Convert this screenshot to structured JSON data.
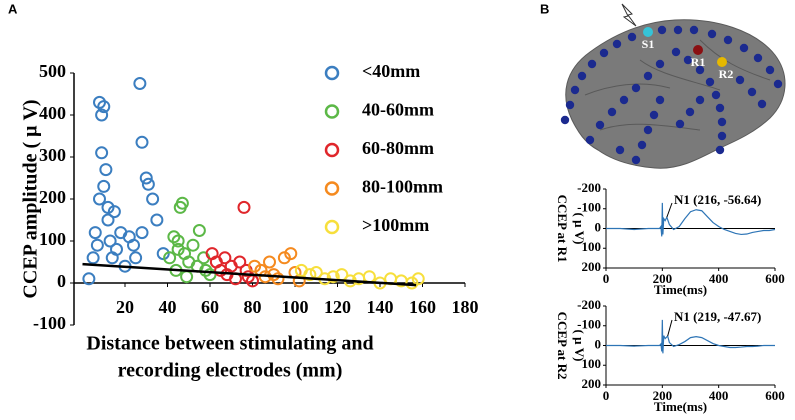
{
  "figure": {
    "panel_labels": [
      "A",
      "B"
    ],
    "brain_labels": [
      "S1",
      "R1",
      "R2"
    ]
  },
  "chart_data": [
    {
      "type": "scatter",
      "ylabel": "CCEP amplitude ( μ V)",
      "xlabel": [
        "Distance between stimulating and",
        "recording electrodes (mm)"
      ],
      "xlim": [
        -4,
        180
      ],
      "xticks": [
        20,
        40,
        60,
        80,
        100,
        120,
        140,
        160,
        180
      ],
      "ylim": [
        -100,
        500
      ],
      "yticks": [
        -100,
        0,
        100,
        200,
        300,
        400,
        500
      ],
      "series": [
        {
          "name": "<40mm",
          "color": "#3b7ec0",
          "x": [
            3,
            5,
            6,
            7,
            8,
            8,
            9,
            9,
            10,
            10,
            11,
            12,
            12,
            13,
            14,
            15,
            16,
            18,
            20,
            22,
            24,
            25,
            27,
            28,
            28,
            30,
            31,
            33,
            35,
            38
          ],
          "values": [
            10,
            60,
            120,
            90,
            430,
            200,
            400,
            310,
            420,
            230,
            270,
            180,
            150,
            100,
            60,
            170,
            80,
            120,
            40,
            110,
            90,
            60,
            475,
            335,
            120,
            250,
            235,
            200,
            150,
            70
          ]
        },
        {
          "name": "40-60mm",
          "color": "#5cb847",
          "x": [
            41,
            43,
            44,
            45,
            46,
            47,
            48,
            50,
            52,
            54,
            55,
            57,
            58,
            60,
            45,
            49
          ],
          "values": [
            60,
            110,
            30,
            100,
            180,
            190,
            70,
            50,
            90,
            40,
            125,
            60,
            30,
            20,
            80,
            15
          ]
        },
        {
          "name": "60-80mm",
          "color": "#e0262b",
          "x": [
            61,
            63,
            65,
            67,
            68,
            70,
            72,
            74,
            76,
            77,
            78,
            80
          ],
          "values": [
            70,
            50,
            30,
            60,
            20,
            40,
            10,
            50,
            180,
            30,
            15,
            5
          ]
        },
        {
          "name": "80-100mm",
          "color": "#f58a1f",
          "x": [
            81,
            84,
            86,
            88,
            90,
            92,
            95,
            98,
            100,
            102
          ],
          "values": [
            40,
            30,
            15,
            50,
            20,
            10,
            60,
            70,
            25,
            5
          ]
        },
        {
          "name": ">100mm",
          "color": "#f7df3c",
          "x": [
            103,
            107,
            110,
            114,
            118,
            122,
            126,
            130,
            135,
            140,
            145,
            150,
            155,
            158
          ],
          "values": [
            30,
            20,
            25,
            10,
            15,
            20,
            5,
            10,
            15,
            0,
            10,
            5,
            0,
            10
          ]
        }
      ],
      "trend": {
        "x": [
          0,
          157
        ],
        "y": [
          45,
          -5
        ],
        "color": "#000000"
      }
    },
    {
      "type": "line",
      "ylabel": [
        "CCEP at R1",
        "( μ V)"
      ],
      "xlabel": "Time(ms)",
      "annotation": "N1 (216, -56.64)",
      "xlim": [
        0,
        600
      ],
      "xticks": [
        0,
        200,
        400,
        600
      ],
      "ylim": [
        200,
        -200
      ],
      "yticks": [
        -200,
        -100,
        0,
        100,
        200
      ],
      "series": [
        {
          "color": "#2e75b6",
          "x": [
            0,
            50,
            100,
            150,
            190,
            195,
            198,
            200,
            202,
            205,
            210,
            216,
            225,
            240,
            260,
            280,
            300,
            320,
            340,
            360,
            380,
            400,
            420,
            440,
            460,
            480,
            500,
            520,
            540,
            560,
            580,
            600
          ],
          "values": [
            0,
            0,
            5,
            0,
            0,
            -10,
            40,
            -130,
            30,
            -50,
            -40,
            -57,
            -20,
            5,
            -10,
            -50,
            -85,
            -95,
            -90,
            -60,
            -30,
            -10,
            5,
            15,
            25,
            30,
            28,
            20,
            15,
            10,
            10,
            5
          ]
        }
      ]
    },
    {
      "type": "line",
      "ylabel": [
        "CCEP at R2",
        "( μ V)"
      ],
      "xlabel": "Time(ms)",
      "annotation": "N1 (219, -47.67)",
      "xlim": [
        0,
        600
      ],
      "xticks": [
        0,
        200,
        400,
        600
      ],
      "ylim": [
        200,
        -200
      ],
      "yticks": [
        -200,
        -100,
        0,
        100,
        200
      ],
      "series": [
        {
          "color": "#2e75b6",
          "x": [
            0,
            50,
            100,
            150,
            190,
            195,
            198,
            200,
            202,
            205,
            210,
            219,
            225,
            240,
            260,
            280,
            300,
            320,
            340,
            360,
            380,
            400,
            420,
            440,
            460,
            480,
            500,
            520,
            540,
            560,
            580,
            600
          ],
          "values": [
            0,
            0,
            3,
            0,
            0,
            -8,
            30,
            -130,
            40,
            -50,
            -35,
            -48,
            -15,
            5,
            -5,
            -20,
            -40,
            -45,
            -40,
            -25,
            -10,
            0,
            5,
            10,
            10,
            8,
            5,
            5,
            3,
            0,
            0,
            0
          ]
        }
      ]
    }
  ]
}
